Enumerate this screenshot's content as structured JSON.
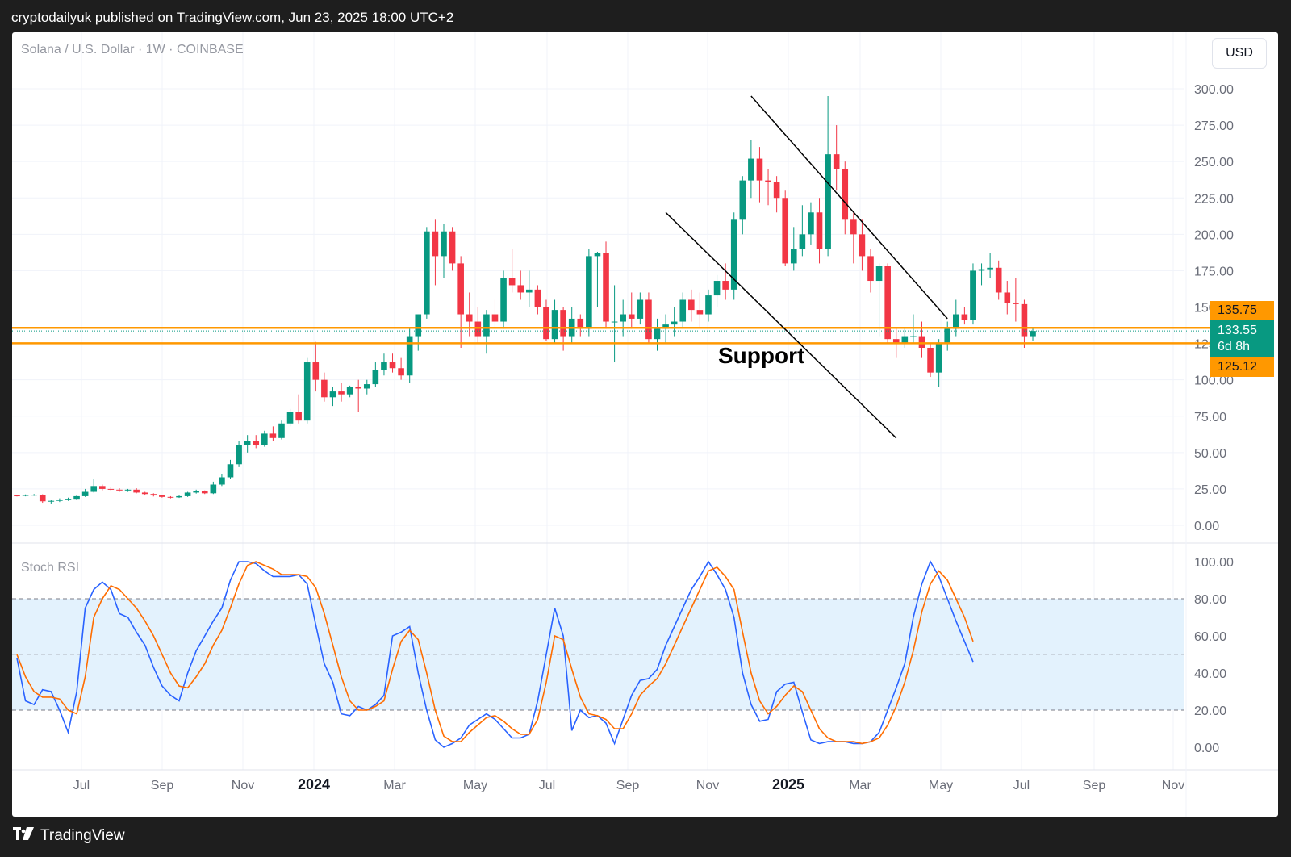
{
  "header": {
    "text": "cryptodailyuk published on TradingView.com, Jun 23, 2025 18:00 UTC+2"
  },
  "symbol_title": "Solana / U.S. Dollar · 1W · COINBASE",
  "currency_button": "USD",
  "indicator_title": "Stoch RSI",
  "annotation": "Support",
  "footer": {
    "brand": "TradingView",
    "logo_icon": "tradingview-logo-icon"
  },
  "colors": {
    "up": "#089981",
    "down": "#f23645",
    "support": "#ff9800",
    "rsi_k": "#2962ff",
    "rsi_d": "#ff6d00",
    "rsi_band": "#e3f2fd"
  },
  "tags": {
    "upper": "135.75",
    "current_price": "133.55",
    "countdown": "6d 8h",
    "lower": "125.12"
  },
  "chart_data": [
    {
      "type": "candlestick",
      "title": "Solana / U.S. Dollar · 1W · COINBASE",
      "y_ticks": [
        "0.00",
        "25.00",
        "50.00",
        "75.00",
        "100.00",
        "125.00",
        "150.00",
        "175.00",
        "200.00",
        "225.00",
        "250.00",
        "275.00",
        "300.00"
      ],
      "ylim": [
        0,
        300
      ],
      "x_ticks": [
        "Jul",
        "Sep",
        "Nov",
        "2024",
        "Mar",
        "May",
        "Jul",
        "Sep",
        "Nov",
        "2025",
        "Mar",
        "May",
        "Jul",
        "Sep",
        "Nov"
      ],
      "x_start": "2023-05-29",
      "candles": [
        [
          20.5,
          21.0,
          19.8,
          20.3
        ],
        [
          20.3,
          21.2,
          19.9,
          20.8
        ],
        [
          20.8,
          21.5,
          20.2,
          21.0
        ],
        [
          21.0,
          21.3,
          15.5,
          16.5
        ],
        [
          16.5,
          17.5,
          15.0,
          16.8
        ],
        [
          16.8,
          18.5,
          16.0,
          17.5
        ],
        [
          17.5,
          19.0,
          16.8,
          18.2
        ],
        [
          18.2,
          20.5,
          17.5,
          20.0
        ],
        [
          20.0,
          25.0,
          19.5,
          23.0
        ],
        [
          23.0,
          32.0,
          22.5,
          27.0
        ],
        [
          27.0,
          28.0,
          24.0,
          25.0
        ],
        [
          25.0,
          26.5,
          23.8,
          24.5
        ],
        [
          24.5,
          25.5,
          23.0,
          24.0
        ],
        [
          24.0,
          25.0,
          23.0,
          24.5
        ],
        [
          24.5,
          25.5,
          22.0,
          22.5
        ],
        [
          22.5,
          23.0,
          20.5,
          21.5
        ],
        [
          21.5,
          22.0,
          19.8,
          20.5
        ],
        [
          20.5,
          21.0,
          19.0,
          19.5
        ],
        [
          19.5,
          20.0,
          18.5,
          19.2
        ],
        [
          19.2,
          20.5,
          18.8,
          20.0
        ],
        [
          20.0,
          23.0,
          19.5,
          22.5
        ],
        [
          22.5,
          24.5,
          21.8,
          23.5
        ],
        [
          23.5,
          24.0,
          21.5,
          22.0
        ],
        [
          22.0,
          30.0,
          21.5,
          28.0
        ],
        [
          28.0,
          35.0,
          27.0,
          33.0
        ],
        [
          33.0,
          45.0,
          32.0,
          42.0
        ],
        [
          42.0,
          58.0,
          40.0,
          55.0
        ],
        [
          55.0,
          62.0,
          50.0,
          58.0
        ],
        [
          58.0,
          62.0,
          53.0,
          55.0
        ],
        [
          55.0,
          65.0,
          54.0,
          63.0
        ],
        [
          63.0,
          68.0,
          58.0,
          60.0
        ],
        [
          60.0,
          72.0,
          59.0,
          70.0
        ],
        [
          70.0,
          80.0,
          68.0,
          78.0
        ],
        [
          78.0,
          90.0,
          70.0,
          72.0
        ],
        [
          72.0,
          115.0,
          70.0,
          112.0
        ],
        [
          112.0,
          126.0,
          92.0,
          100.0
        ],
        [
          100.0,
          105.0,
          85.0,
          88.0
        ],
        [
          88.0,
          95.0,
          82.0,
          92.0
        ],
        [
          92.0,
          98.0,
          85.0,
          90.0
        ],
        [
          90.0,
          96.0,
          88.0,
          95.0
        ],
        [
          95.0,
          100.0,
          78.0,
          94.0
        ],
        [
          94.0,
          100.0,
          90.0,
          97.0
        ],
        [
          97.0,
          112.0,
          95.0,
          107.0
        ],
        [
          107.0,
          118.0,
          103.0,
          112.0
        ],
        [
          112.0,
          118.0,
          105.0,
          108.0
        ],
        [
          108.0,
          115.0,
          100.0,
          103.0
        ],
        [
          103.0,
          135.0,
          98.0,
          130.0
        ],
        [
          130.0,
          145.0,
          120.0,
          145.0
        ],
        [
          145.0,
          205.0,
          142.0,
          202.0
        ],
        [
          202.0,
          210.0,
          165.0,
          185.0
        ],
        [
          185.0,
          207.0,
          170.0,
          202.0
        ],
        [
          202.0,
          205.0,
          175.0,
          180.0
        ],
        [
          180.0,
          185.0,
          122.0,
          145.0
        ],
        [
          145.0,
          160.0,
          130.0,
          140.0
        ],
        [
          140.0,
          150.0,
          125.0,
          130.0
        ],
        [
          130.0,
          148.0,
          118.0,
          145.0
        ],
        [
          145.0,
          155.0,
          136.0,
          140.0
        ],
        [
          140.0,
          175.0,
          135.0,
          170.0
        ],
        [
          170.0,
          190.0,
          160.0,
          165.0
        ],
        [
          165.0,
          175.0,
          155.0,
          160.0
        ],
        [
          160.0,
          175.0,
          150.0,
          162.0
        ],
        [
          162.0,
          165.0,
          145.0,
          150.0
        ],
        [
          150.0,
          155.0,
          127.0,
          128.0
        ],
        [
          128.0,
          155.0,
          125.0,
          148.0
        ],
        [
          148.0,
          150.0,
          120.0,
          130.0
        ],
        [
          130.0,
          150.0,
          125.0,
          142.0
        ],
        [
          142.0,
          145.0,
          130.0,
          135.0
        ],
        [
          135.0,
          190.0,
          130.0,
          185.0
        ],
        [
          185.0,
          188.0,
          150.0,
          187.0
        ],
        [
          187.0,
          195.0,
          135.0,
          140.0
        ],
        [
          140.0,
          165.0,
          112.0,
          140.0
        ],
        [
          140.0,
          155.0,
          130.0,
          145.0
        ],
        [
          145.0,
          160.0,
          135.0,
          142.0
        ],
        [
          142.0,
          160.0,
          138.0,
          155.0
        ],
        [
          155.0,
          160.0,
          125.0,
          128.0
        ],
        [
          128.0,
          142.0,
          120.0,
          135.0
        ],
        [
          135.0,
          145.0,
          125.0,
          138.0
        ],
        [
          138.0,
          150.0,
          130.0,
          140.0
        ],
        [
          140.0,
          160.0,
          135.0,
          155.0
        ],
        [
          155.0,
          162.0,
          140.0,
          148.0
        ],
        [
          148.0,
          160.0,
          135.0,
          145.0
        ],
        [
          145.0,
          162.0,
          140.0,
          158.0
        ],
        [
          158.0,
          172.0,
          150.0,
          168.0
        ],
        [
          168.0,
          180.0,
          155.0,
          162.0
        ],
        [
          162.0,
          215.0,
          155.0,
          210.0
        ],
        [
          210.0,
          240.0,
          200.0,
          237.0
        ],
        [
          237.0,
          265.0,
          225.0,
          252.0
        ],
        [
          252.0,
          260.0,
          222.0,
          237.0
        ],
        [
          237.0,
          245.0,
          220.0,
          236.0
        ],
        [
          236.0,
          240.0,
          215.0,
          225.0
        ],
        [
          225.0,
          230.0,
          178.0,
          180.0
        ],
        [
          180.0,
          205.0,
          175.0,
          190.0
        ],
        [
          190.0,
          220.0,
          185.0,
          200.0
        ],
        [
          200.0,
          222.0,
          193.0,
          215.0
        ],
        [
          215.0,
          225.0,
          180.0,
          190.0
        ],
        [
          190.0,
          295.0,
          185.0,
          255.0
        ],
        [
          255.0,
          275.0,
          230.0,
          245.0
        ],
        [
          245.0,
          250.0,
          200.0,
          210.0
        ],
        [
          210.0,
          215.0,
          180.0,
          200.0
        ],
        [
          200.0,
          210.0,
          175.0,
          185.0
        ],
        [
          185.0,
          190.0,
          160.0,
          168.0
        ],
        [
          168.0,
          180.0,
          130.0,
          178.0
        ],
        [
          178.0,
          180.0,
          125.0,
          128.0
        ],
        [
          128.0,
          135.0,
          115.0,
          125.0
        ],
        [
          125.0,
          135.0,
          122.0,
          130.0
        ],
        [
          130.0,
          145.0,
          125.0,
          130.0
        ],
        [
          130.0,
          140.0,
          115.0,
          122.0
        ],
        [
          122.0,
          125.0,
          102.0,
          105.0
        ],
        [
          105.0,
          128.0,
          95.0,
          125.0
        ],
        [
          125.0,
          140.0,
          120.0,
          135.0
        ],
        [
          135.0,
          155.0,
          130.0,
          145.0
        ],
        [
          145.0,
          150.0,
          138.0,
          141.0
        ],
        [
          141.0,
          180.0,
          138.0,
          175.0
        ],
        [
          175.0,
          180.0,
          165.0,
          176.0
        ],
        [
          176.0,
          187.0,
          170.0,
          177.0
        ],
        [
          177.0,
          182.0,
          155.0,
          160.0
        ],
        [
          160.0,
          168.0,
          145.0,
          153.0
        ],
        [
          153.0,
          170.0,
          140.0,
          152.0
        ],
        [
          152.0,
          155.0,
          122.0,
          130.0
        ],
        [
          130.0,
          136.0,
          127.0,
          133.55
        ]
      ],
      "support_levels": [
        135.75,
        125.12
      ],
      "current_price": 133.55,
      "trendlines": [
        {
          "from": [
            "2025-01-20",
            295
          ],
          "to": [
            "2025-06-30",
            142
          ]
        },
        {
          "from": [
            "2024-11-11",
            215
          ],
          "to": [
            "2025-05-19",
            60
          ]
        }
      ]
    },
    {
      "type": "line",
      "title": "Stoch RSI",
      "y_ticks": [
        "0.00",
        "20.00",
        "40.00",
        "60.00",
        "80.00",
        "100.00"
      ],
      "ylim": [
        0,
        100
      ],
      "band": [
        20,
        80
      ],
      "midline": 50,
      "series": [
        {
          "values": [
            48,
            25,
            23,
            31,
            30,
            20,
            8,
            30,
            75,
            85,
            89,
            85,
            72,
            70,
            62,
            55,
            43,
            33,
            28,
            25,
            40,
            52,
            60,
            68,
            75,
            90,
            100,
            100,
            99,
            95,
            92,
            92,
            92,
            93,
            88,
            66,
            45,
            35,
            18,
            17,
            22,
            20,
            23,
            28,
            60,
            62,
            65,
            40,
            20,
            4,
            0,
            2,
            5,
            12,
            15,
            18,
            15,
            10,
            5,
            5,
            7,
            25,
            50,
            75,
            60,
            9,
            20,
            16,
            17,
            13,
            2,
            15,
            28,
            36,
            37,
            42,
            55,
            65,
            75,
            85,
            92,
            100,
            93,
            85,
            70,
            40,
            23,
            14,
            15,
            30,
            34,
            35,
            19,
            4,
            2,
            3,
            3,
            3,
            2,
            2,
            3,
            8,
            20,
            32,
            45,
            70,
            88,
            100,
            92,
            80,
            68,
            57,
            46
          ]
        },
        {
          "values": [
            50,
            38,
            30,
            27,
            27,
            26,
            20,
            18,
            38,
            70,
            80,
            87,
            85,
            80,
            75,
            68,
            60,
            50,
            40,
            33,
            32,
            38,
            45,
            55,
            63,
            75,
            88,
            98,
            100,
            98,
            96,
            93,
            93,
            93,
            92,
            86,
            72,
            55,
            38,
            25,
            20,
            20,
            22,
            25,
            42,
            57,
            63,
            58,
            40,
            20,
            6,
            3,
            3,
            8,
            12,
            16,
            17,
            14,
            10,
            7,
            7,
            15,
            35,
            60,
            58,
            42,
            27,
            18,
            17,
            15,
            10,
            10,
            18,
            28,
            33,
            37,
            45,
            55,
            65,
            75,
            85,
            95,
            97,
            92,
            85,
            62,
            40,
            25,
            18,
            22,
            28,
            33,
            30,
            20,
            10,
            5,
            3,
            3,
            3,
            2,
            3,
            5,
            12,
            22,
            35,
            52,
            73,
            88,
            95,
            90,
            80,
            70,
            57
          ]
        }
      ]
    }
  ]
}
